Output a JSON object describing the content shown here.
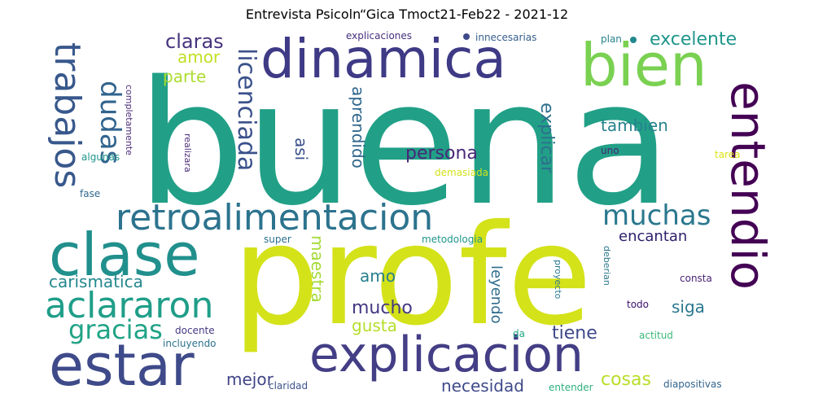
{
  "title": "Entrevista Psicoln“Gica Tmoct21-Feb22 - 2021-12",
  "words": [
    {
      "text": "buena",
      "color": "#21a087"
    },
    {
      "text": "profe",
      "color": "#d4e21a"
    },
    {
      "text": "dinamica",
      "color": "#3e3a85"
    },
    {
      "text": "explicacion",
      "color": "#433e85"
    },
    {
      "text": "estar",
      "color": "#3e4a89"
    },
    {
      "text": "clase",
      "color": "#21908d"
    },
    {
      "text": "bien",
      "color": "#7ad151"
    },
    {
      "text": "entendio",
      "color": "#440154"
    },
    {
      "text": "retroalimentacion",
      "color": "#2c738e"
    },
    {
      "text": "trabajos",
      "color": "#38588c"
    },
    {
      "text": "aclararon",
      "color": "#1f9e89"
    },
    {
      "text": "dudas",
      "color": "#32648e"
    },
    {
      "text": "licenciada",
      "color": "#3b528b"
    },
    {
      "text": "muchas",
      "color": "#2a788e"
    },
    {
      "text": "gracias",
      "color": "#20a386"
    },
    {
      "text": "claras",
      "color": "#46337e"
    },
    {
      "text": "excelente",
      "color": "#1f968b"
    },
    {
      "text": "amor",
      "color": "#c2df23"
    },
    {
      "text": "parte",
      "color": "#addc30"
    },
    {
      "text": "tambien",
      "color": "#26828e"
    },
    {
      "text": "persona",
      "color": "#482878"
    },
    {
      "text": "aprendido",
      "color": "#31688e"
    },
    {
      "text": "explicar",
      "color": "#2d708e"
    },
    {
      "text": "asi",
      "color": "#3b528b"
    },
    {
      "text": "encantan",
      "color": "#2d1e6b"
    },
    {
      "text": "carismatica",
      "color": "#23888e"
    },
    {
      "text": "amo",
      "color": "#277f8e"
    },
    {
      "text": "mucho",
      "color": "#443983"
    },
    {
      "text": "siga",
      "color": "#2a788e"
    },
    {
      "text": "gusta",
      "color": "#b5de2b"
    },
    {
      "text": "maestra",
      "color": "#a5db36"
    },
    {
      "text": "leyendo",
      "color": "#2f6c8e"
    },
    {
      "text": "tiene",
      "color": "#3e4989"
    },
    {
      "text": "mejor",
      "color": "#414487"
    },
    {
      "text": "necesidad",
      "color": "#3e4a89"
    },
    {
      "text": "cosas",
      "color": "#b8de29"
    },
    {
      "text": "explicaciones",
      "color": "#46307e"
    },
    {
      "text": "innecesarias",
      "color": "#355f8d"
    },
    {
      "text": "plan",
      "color": "#26828e"
    },
    {
      "text": "completamente",
      "color": "#4a2b79"
    },
    {
      "text": "realizara",
      "color": "#4a2b79"
    },
    {
      "text": "algunas",
      "color": "#1f968b"
    },
    {
      "text": "fase",
      "color": "#30688e"
    },
    {
      "text": "demasiada",
      "color": "#d2e21b"
    },
    {
      "text": "uno",
      "color": "#482475"
    },
    {
      "text": "tarea",
      "color": "#dde318"
    },
    {
      "text": "super",
      "color": "#2c728e"
    },
    {
      "text": "metodologia",
      "color": "#1f968b"
    },
    {
      "text": "proyecto",
      "color": "#2a788e"
    },
    {
      "text": "deberian",
      "color": "#2a788e"
    },
    {
      "text": "consta",
      "color": "#481f71"
    },
    {
      "text": "todo",
      "color": "#3b0f70"
    },
    {
      "text": "docente",
      "color": "#443a83"
    },
    {
      "text": "incluyendo",
      "color": "#2c728e"
    },
    {
      "text": "da",
      "color": "#21a585"
    },
    {
      "text": "actitud",
      "color": "#38b977"
    },
    {
      "text": "claridad",
      "color": "#3b528b"
    },
    {
      "text": "entender",
      "color": "#2cb17e"
    },
    {
      "text": "diapositivas",
      "color": "#32648e"
    }
  ]
}
